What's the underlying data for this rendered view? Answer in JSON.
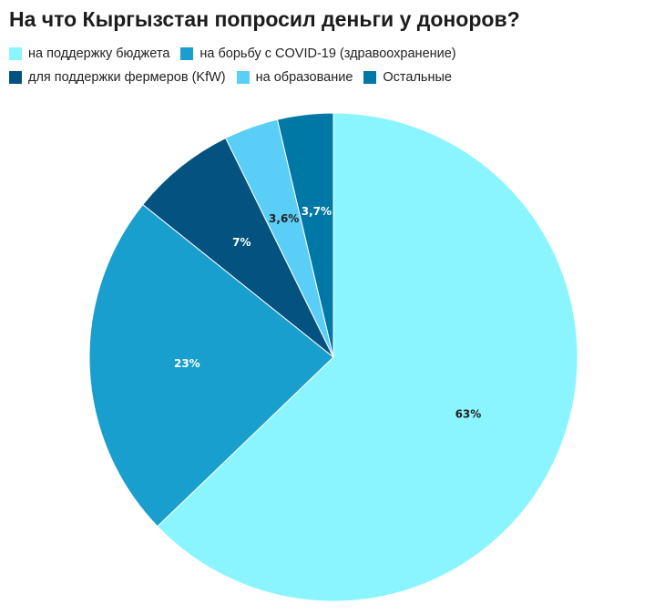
{
  "chart_data": {
    "type": "pie",
    "title": "На что Кыргызстан попросил деньги у доноров?",
    "start_angle_deg": 0,
    "direction": "clockwise",
    "legend_position": "top",
    "slices": [
      {
        "name": "на поддержку бюджета",
        "value": 63,
        "label": "63%",
        "color": "#8AF5FF",
        "label_color": "#222222"
      },
      {
        "name": "на борьбу с COVID-19 (здравоохранение)",
        "value": 23,
        "label": "23%",
        "color": "#199FCE",
        "label_color": "#ffffff"
      },
      {
        "name": "для поддержки фермеров (KfW)",
        "value": 7,
        "label": "7%",
        "color": "#035280",
        "label_color": "#ffffff"
      },
      {
        "name": "на образование",
        "value": 3.6,
        "label": "3,6%",
        "color": "#5BCEF8",
        "label_color": "#222222"
      },
      {
        "name": "Остальные",
        "value": 3.7,
        "label": "3,7%",
        "color": "#0078A6",
        "label_color": "#ffffff"
      }
    ]
  }
}
